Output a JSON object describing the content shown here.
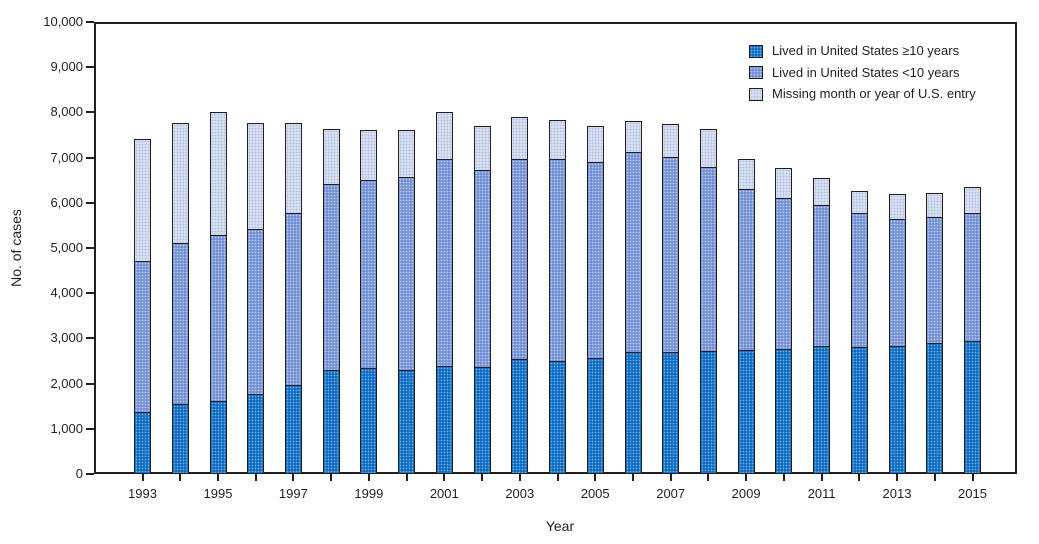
{
  "chart_data": {
    "type": "bar",
    "stacked": true,
    "title": "",
    "xlabel": "Year",
    "ylabel": "No. of cases",
    "ylim": [
      0,
      10000
    ],
    "ytick_interval": 1000,
    "ytick_labels": [
      "0",
      "1,000",
      "2,000",
      "3,000",
      "4,000",
      "5,000",
      "6,000",
      "7,000",
      "8,000",
      "9,000",
      "10,000"
    ],
    "categories": [
      1993,
      1994,
      1995,
      1996,
      1997,
      1998,
      1999,
      2000,
      2001,
      2002,
      2003,
      2004,
      2005,
      2006,
      2007,
      2008,
      2009,
      2010,
      2011,
      2012,
      2013,
      2014,
      2015
    ],
    "xtick_label_every": 2,
    "legend_position": "top-right",
    "grid": false,
    "series": [
      {
        "name": "Lived in United States ≥10 years",
        "color": "#0e6dc2",
        "values": [
          1350,
          1530,
          1590,
          1750,
          1950,
          2280,
          2330,
          2280,
          2370,
          2350,
          2520,
          2480,
          2550,
          2680,
          2670,
          2700,
          2730,
          2730,
          2810,
          2790,
          2810,
          2880,
          2920
        ]
      },
      {
        "name": "Lived in United States <10 years",
        "color": "#7290d3",
        "values": [
          3340,
          3560,
          3680,
          3650,
          3800,
          4120,
          4150,
          4270,
          4580,
          4350,
          4430,
          4470,
          4340,
          4420,
          4320,
          4060,
          3550,
          3350,
          3120,
          2970,
          2810,
          2780,
          2830
        ]
      },
      {
        "name": "Missing month or year of U.S. entry",
        "color": "#d7dff1",
        "values": [
          2720,
          2670,
          2740,
          2360,
          2010,
          1230,
          1140,
          1070,
          1060,
          1010,
          950,
          880,
          820,
          710,
          760,
          870,
          690,
          700,
          610,
          510,
          580,
          560,
          600
        ]
      }
    ],
    "frame_color": "#231f20",
    "background_color": "#ffffff"
  }
}
